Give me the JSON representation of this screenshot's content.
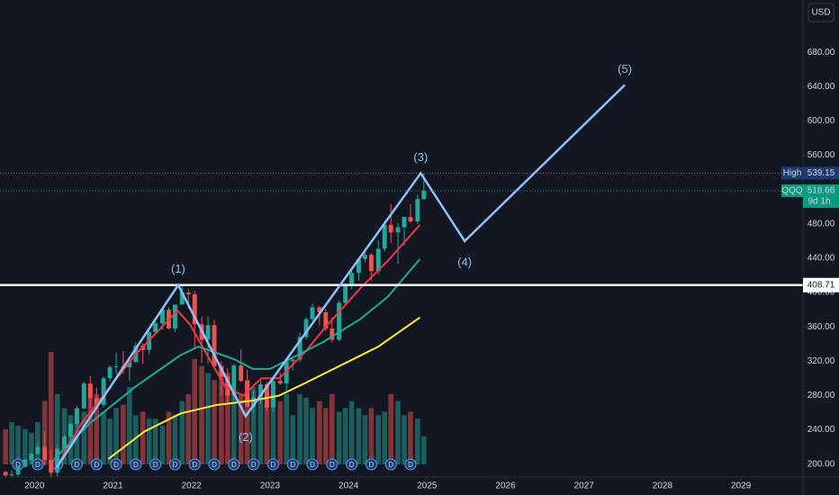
{
  "chart_data": {
    "type": "candlestick",
    "currency": "USD",
    "event_marker": "D",
    "x": [
      2019.63,
      2019.71,
      2019.79,
      2019.88,
      2019.96,
      2020.04,
      2020.13,
      2020.21,
      2020.29,
      2020.38,
      2020.46,
      2020.54,
      2020.63,
      2020.71,
      2020.79,
      2020.88,
      2020.96,
      2021.04,
      2021.13,
      2021.21,
      2021.29,
      2021.38,
      2021.46,
      2021.54,
      2021.63,
      2021.71,
      2021.79,
      2021.88,
      2021.96,
      2022.04,
      2022.13,
      2022.21,
      2022.29,
      2022.38,
      2022.46,
      2022.54,
      2022.63,
      2022.71,
      2022.79,
      2022.88,
      2022.96,
      2023.04,
      2023.13,
      2023.21,
      2023.29,
      2023.38,
      2023.46,
      2023.54,
      2023.63,
      2023.71,
      2023.79,
      2023.88,
      2023.96,
      2024.04,
      2024.13,
      2024.21,
      2024.29,
      2024.38,
      2024.46,
      2024.54,
      2024.63,
      2024.71,
      2024.79,
      2024.88,
      2024.96
    ],
    "open": [
      191,
      187,
      188,
      197,
      205,
      212,
      220,
      205,
      190,
      218,
      232,
      247,
      265,
      294,
      277,
      269,
      300,
      313,
      314,
      313,
      319,
      338,
      333,
      354,
      364,
      380,
      358,
      386,
      400,
      398,
      363,
      345,
      362,
      314,
      302,
      280,
      315,
      297,
      267,
      278,
      293,
      266,
      297,
      294,
      320,
      322,
      348,
      369,
      383,
      377,
      358,
      345,
      388,
      409,
      423,
      439,
      444,
      425,
      451,
      479,
      470,
      476,
      488,
      483,
      509
    ],
    "high": [
      192,
      193,
      198,
      206,
      213,
      225,
      238,
      217,
      223,
      234,
      248,
      268,
      296,
      303,
      289,
      302,
      315,
      330,
      332,
      323,
      342,
      341,
      355,
      367,
      381,
      383,
      386,
      409,
      404,
      402,
      372,
      372,
      368,
      320,
      312,
      317,
      334,
      310,
      286,
      297,
      296,
      300,
      307,
      321,
      326,
      353,
      371,
      387,
      384,
      381,
      371,
      391,
      411,
      427,
      440,
      449,
      446,
      461,
      484,
      503,
      481,
      488,
      503,
      514,
      539.15
    ],
    "low": [
      181,
      183,
      182,
      196,
      201,
      211,
      198,
      164,
      185,
      215,
      225,
      243,
      264,
      265,
      264,
      266,
      296,
      305,
      305,
      297,
      318,
      317,
      328,
      351,
      357,
      357,
      354,
      386,
      381,
      335,
      318,
      317,
      313,
      280,
      270,
      274,
      296,
      267,
      260,
      270,
      262,
      261,
      292,
      286,
      309,
      319,
      345,
      367,
      362,
      355,
      342,
      343,
      387,
      404,
      414,
      435,
      414,
      421,
      448,
      458,
      433,
      455,
      481,
      480,
      508
    ],
    "close": [
      187,
      188,
      197,
      205,
      212,
      220,
      205,
      190,
      218,
      232,
      247,
      265,
      294,
      277,
      269,
      300,
      313,
      314,
      313,
      319,
      338,
      333,
      354,
      364,
      380,
      358,
      386,
      400,
      398,
      363,
      345,
      362,
      314,
      302,
      280,
      315,
      297,
      267,
      278,
      293,
      266,
      297,
      294,
      320,
      322,
      348,
      369,
      383,
      377,
      358,
      345,
      388,
      409,
      423,
      439,
      444,
      425,
      451,
      479,
      470,
      476,
      488,
      483,
      509,
      518.66
    ],
    "volume": [
      500,
      600,
      550,
      500,
      450,
      600,
      900,
      1600,
      1000,
      800,
      700,
      800,
      750,
      1100,
      1000,
      750,
      650,
      800,
      850,
      1100,
      700,
      750,
      650,
      650,
      550,
      750,
      700,
      900,
      1000,
      1500,
      1400,
      1300,
      1200,
      1400,
      1300,
      1000,
      1000,
      1200,
      1100,
      1000,
      900,
      1000,
      900,
      1000,
      700,
      1000,
      950,
      800,
      900,
      800,
      1000,
      750,
      800,
      900,
      800,
      700,
      800,
      700,
      750,
      1000,
      900,
      700,
      750,
      650,
      400
    ],
    "up_color": "#26a69a",
    "down_color": "#ef5350",
    "moving_averages": [
      {
        "color": "#f23645",
        "x": [
          2020.34,
          2020.6,
          2021.28,
          2021.82,
          2021.98,
          2022.2,
          2022.43,
          2022.66,
          2022.89,
          2023.12,
          2023.46,
          2023.69,
          2024.15,
          2024.5,
          2024.91
        ],
        "values": [
          206,
          248,
          327,
          379,
          363,
          327,
          290,
          280,
          300,
          300,
          332,
          358,
          405,
          437,
          479
        ]
      },
      {
        "color": "#22ab94",
        "x": [
          2020.25,
          2020.71,
          2021.28,
          2021.86,
          2022.09,
          2022.55,
          2022.78,
          2023.0,
          2023.35,
          2023.69,
          2024.15,
          2024.5,
          2024.91
        ],
        "values": [
          206,
          248,
          290,
          327,
          337,
          322,
          311,
          311,
          327,
          343,
          369,
          395,
          439
        ]
      },
      {
        "color": "#ffeb3b",
        "x": [
          2020.94,
          2021.4,
          2021.86,
          2022.32,
          2022.78,
          2023.12,
          2023.46,
          2023.92,
          2024.38,
          2024.91
        ],
        "values": [
          206,
          238,
          259,
          269,
          274,
          280,
          295,
          316,
          337,
          371
        ]
      }
    ],
    "wave": {
      "color": "#90bff9",
      "x": [
        2020.28,
        2021.83,
        2022.69,
        2024.92,
        2025.48,
        2027.52
      ],
      "values": [
        196,
        408.71,
        256,
        539.15,
        460,
        642
      ],
      "labels": [
        null,
        "(1)",
        "(2)",
        "(3)",
        "(4)",
        "(5)"
      ]
    },
    "level": 408.71,
    "price_lines": [
      {
        "label": "High",
        "value": 539.15,
        "color": "#1e3a6e"
      },
      {
        "label": "QQQ",
        "value": 518.66,
        "countdown": "9d 1h",
        "color": "#089981"
      }
    ],
    "xlim": [
      2019.56,
      2029.79
    ],
    "ylim": [
      185,
      741
    ],
    "xticks": [
      2020,
      2021,
      2022,
      2023,
      2024,
      2025,
      2026,
      2027,
      2028,
      2029
    ],
    "yticks": [
      {
        "value": 200,
        "label": "200.00"
      },
      {
        "value": 240,
        "label": "240.00"
      },
      {
        "value": 280,
        "label": "280.00"
      },
      {
        "value": 320,
        "label": "320.00"
      },
      {
        "value": 360,
        "label": "360.00"
      },
      {
        "value": 400,
        "label": "400.00"
      },
      {
        "value": 440,
        "label": "440.00"
      },
      {
        "value": 480,
        "label": "480.00"
      },
      {
        "value": 520,
        "label": "520.00"
      },
      {
        "value": 560,
        "label": "560.00"
      },
      {
        "value": 600,
        "label": "600.00"
      },
      {
        "value": 640,
        "label": "640.00"
      },
      {
        "value": 680,
        "label": "680.00"
      }
    ]
  }
}
